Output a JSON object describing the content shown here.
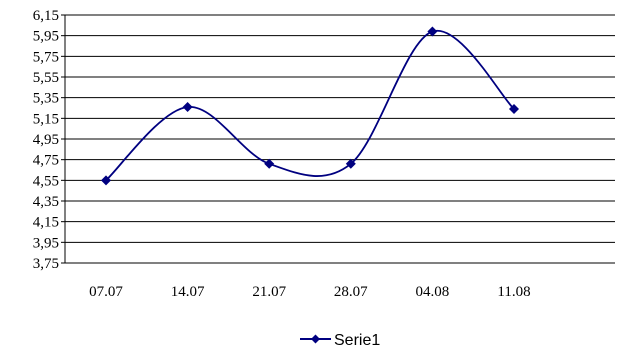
{
  "chart_data": {
    "type": "line",
    "smooth": true,
    "categories": [
      "07.07",
      "14.07",
      "21.07",
      "28.07",
      "04.08",
      "11.08"
    ],
    "series": [
      {
        "name": "Serie1",
        "values": [
          4.55,
          5.26,
          4.71,
          4.71,
          5.99,
          5.24
        ]
      }
    ],
    "ylim": [
      3.75,
      6.15
    ],
    "yticks": [
      "6,15",
      "5,95",
      "5,75",
      "5,55",
      "5,35",
      "5,15",
      "4,95",
      "4,75",
      "4,55",
      "4,35",
      "4,15",
      "3,95",
      "3,75"
    ],
    "grid": true,
    "legend_position": "bottom",
    "colors": {
      "series": "#000080",
      "grid": "#000000"
    }
  }
}
